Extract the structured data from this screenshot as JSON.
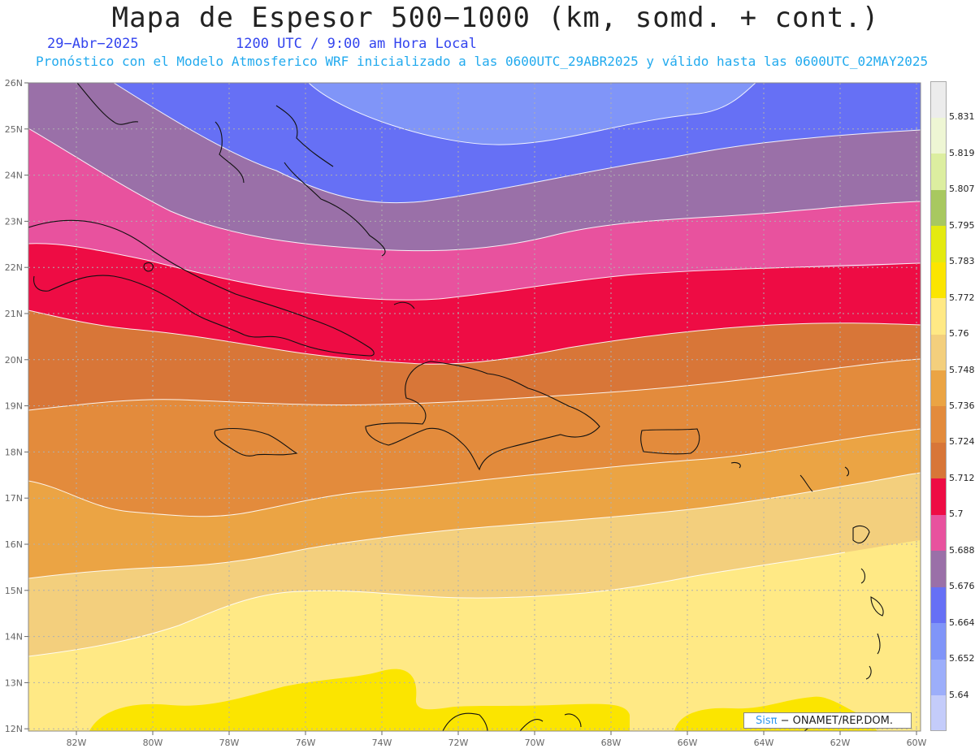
{
  "title": "Mapa de Espesor 500−1000 (km, somd. + cont.)",
  "date": "29−Abr−2025",
  "time": "1200 UTC / 9:00 am Hora Local",
  "subtitle": "Pronóstico con el Modelo Atmosferico WRF inicializado a las 0600UTC_29ABR2025 y válido hasta las  0600UTC_02MAY2025",
  "credit": {
    "sis": "Sisπ",
    "rest": " − ONAMET/REP.DOM."
  },
  "lat_labels": [
    "26N",
    "25N",
    "24N",
    "23N",
    "22N",
    "21N",
    "20N",
    "19N",
    "18N",
    "17N",
    "16N",
    "15N",
    "14N",
    "13N",
    "12N"
  ],
  "lon_labels": [
    "82W",
    "80W",
    "78W",
    "76W",
    "74W",
    "72W",
    "70W",
    "68W",
    "66W",
    "64W",
    "62W",
    "60W"
  ],
  "colorbar": {
    "labels": [
      "5.64",
      "5.652",
      "5.664",
      "5.676",
      "5.688",
      "5.7",
      "5.712",
      "5.724",
      "5.736",
      "5.748",
      "5.76",
      "5.772",
      "5.783",
      "5.795",
      "5.807",
      "5.819",
      "5.831"
    ],
    "colors": [
      "#c4ccfa",
      "#9caefa",
      "#8095f8",
      "#6670f5",
      "#9a70a8",
      "#e8529e",
      "#ee0c44",
      "#d87638",
      "#e38b3c",
      "#eba444",
      "#f3cf7d",
      "#ffe985",
      "#fbe500",
      "#e4ea10",
      "#a8c860",
      "#dceea0",
      "#eef6d4",
      "#ececec"
    ]
  },
  "bands": [
    "#8095f8",
    "#6670f5",
    "#9a70a8",
    "#e8529e",
    "#ee0c44",
    "#d87638",
    "#e38b3c",
    "#eba444",
    "#f3cf7d",
    "#ffe985",
    "#fbe500"
  ],
  "grid_color": "#b0b0b0",
  "coast_color": "#111111"
}
